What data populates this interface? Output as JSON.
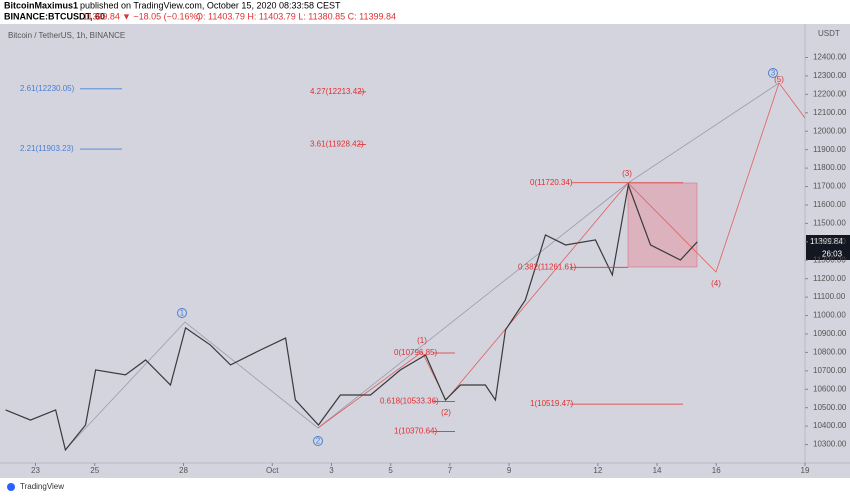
{
  "header": {
    "author": "BitcoinMaximus1",
    "published": "published on TradingView.com, October 15, 2020 08:33:58 CEST",
    "symbol": "BINANCE:BTCUSDT, 60",
    "last": "11399.84",
    "change": "▼ −18.05 (−0.16%)",
    "ohlc": "O: 11403.79  H: 11403.79  L: 11380.85  C: 11399.84",
    "pane_label": "Bitcoin / TetherUS, 1h, BINANCE",
    "currency": "USDT",
    "countdown": "26:03",
    "footer": "TradingView"
  },
  "chart_data": {
    "type": "line",
    "x": [
      -1.01,
      -0.17,
      0.68,
      1.01,
      1.69,
      2.03,
      3.04,
      3.72,
      4.56,
      5.07,
      5.91,
      6.59,
      7.6,
      8.45,
      8.78,
      9.56,
      10.3,
      11.32,
      12.33,
      13.18,
      13.85,
      14.36,
      15.2,
      15.54,
      15.88,
      16.55,
      17.23,
      17.91,
      18.92,
      19.49,
      20.03,
      20.78,
      21.79,
      22.36
    ],
    "series": [
      {
        "name": "BTCUSDT",
        "color": "#3a3a3a",
        "values": [
          10488,
          10433,
          10488,
          10271,
          10406,
          10705,
          10678,
          10759,
          10623,
          10933,
          10840,
          10732,
          10813,
          10878,
          10542,
          10406,
          10569,
          10569,
          10705,
          10786,
          10542,
          10623,
          10623,
          10542,
          10922,
          11084,
          11437,
          11383,
          11410,
          11220,
          11708,
          11383,
          11301,
          11399.84
        ]
      }
    ],
    "xlim": [
      -1.2,
      26
    ],
    "ylim": [
      10200,
      12560
    ],
    "xticks": [
      {
        "value": 0,
        "label": "23"
      },
      {
        "value": 2,
        "label": "25"
      },
      {
        "value": 5,
        "label": "28"
      },
      {
        "value": 8,
        "label": "Oct"
      },
      {
        "value": 10,
        "label": "3"
      },
      {
        "value": 12,
        "label": "5"
      },
      {
        "value": 14,
        "label": "7"
      },
      {
        "value": 16,
        "label": "9"
      },
      {
        "value": 19,
        "label": "12"
      },
      {
        "value": 21,
        "label": "14"
      },
      {
        "value": 23,
        "label": "16"
      },
      {
        "value": 26,
        "label": "19"
      }
    ],
    "yticks": [
      {
        "value": 10300,
        "label": "10300.00"
      },
      {
        "value": 10400,
        "label": "10400.00"
      },
      {
        "value": 10500,
        "label": "10500.00"
      },
      {
        "value": 10600,
        "label": "10600.00"
      },
      {
        "value": 10700,
        "label": "10700.00"
      },
      {
        "value": 10800,
        "label": "10800.00"
      },
      {
        "value": 10900,
        "label": "10900.00"
      },
      {
        "value": 11000,
        "label": "11000.00"
      },
      {
        "value": 11100,
        "label": "11100.00"
      },
      {
        "value": 11200,
        "label": "11200.00"
      },
      {
        "value": 11300,
        "label": "11300.00"
      },
      {
        "value": 11400,
        "label": "11400.00"
      },
      {
        "value": 11500,
        "label": "11500.00"
      },
      {
        "value": 11600,
        "label": "11600.00"
      },
      {
        "value": 11700,
        "label": "11700.00"
      },
      {
        "value": 11800,
        "label": "11800.00"
      },
      {
        "value": 11900,
        "label": "11900.00"
      },
      {
        "value": 12000,
        "label": "12000.00"
      },
      {
        "value": 12100,
        "label": "12100.00"
      },
      {
        "value": 12200,
        "label": "12200.00"
      },
      {
        "value": 12300,
        "label": "12300.00"
      },
      {
        "value": 12400,
        "label": "12400.00"
      }
    ],
    "annotations": [
      {
        "text": "2.61(12230.05)",
        "value": 12230.05,
        "color": "#4a7fd8"
      },
      {
        "text": "2.21(11903.23)",
        "value": 11903.23,
        "color": "#4a7fd8"
      },
      {
        "text": "4.27(12213.42)",
        "value": 12213.42,
        "color": "#e03030"
      },
      {
        "text": "3.61(11928.42)",
        "value": 11928.42,
        "color": "#e03030"
      },
      {
        "text": "0(11720.34)",
        "value": 11720.34,
        "color": "#e03030"
      },
      {
        "text": "0.382(11261.61)",
        "value": 11261.61,
        "color": "#e03030"
      },
      {
        "text": "0(10796.85)",
        "value": 10796.85,
        "color": "#e03030"
      },
      {
        "text": "0.618(10533.36)",
        "value": 10533.36,
        "color": "#e03030"
      },
      {
        "text": "1(10370.64)",
        "value": 10370.64,
        "color": "#e03030"
      },
      {
        "text": "1(10519.47)",
        "value": 10519.47,
        "color": "#e03030"
      }
    ],
    "wave_labels": [
      "(1)",
      "(2)",
      "(3)",
      "(4)",
      "(5)",
      "1",
      "2",
      "3"
    ]
  }
}
